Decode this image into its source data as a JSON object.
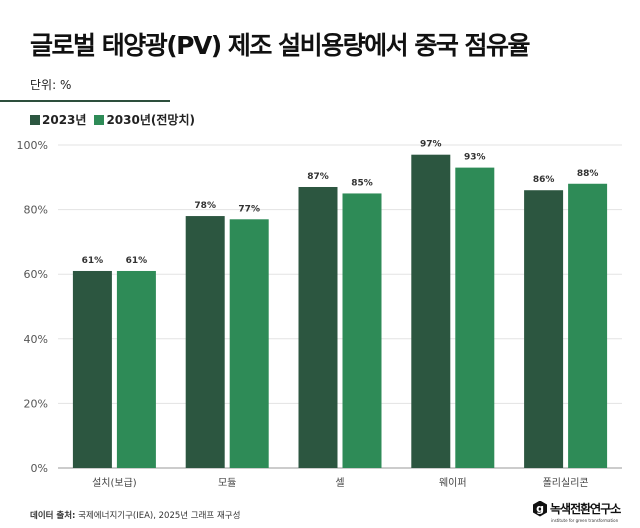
{
  "title": "글로벌 태양광(PV) 제조 설비용량에서 중국 점유율",
  "unit": "단위: %",
  "source_label": "데이터 출처:",
  "source_text": "국제에너지기구(IEA), 2025년 그래프 재구성",
  "logo": {
    "name": "녹색전환연구소",
    "sub": "institute for green transformation",
    "letter": "g"
  },
  "colors": {
    "s2023": "#2c5640",
    "s2030": "#2e8b57"
  },
  "chart_data": {
    "type": "bar",
    "title": "글로벌 태양광(PV) 제조 설비용량에서 중국 점유율",
    "categories": [
      "설치(보급)",
      "모듈",
      "셀",
      "웨이퍼",
      "폴리실리콘"
    ],
    "series": [
      {
        "name": "2023년",
        "values": [
          61,
          78,
          87,
          97,
          86
        ]
      },
      {
        "name": "2030년(전망치)",
        "values": [
          61,
          77,
          85,
          93,
          88
        ]
      }
    ],
    "ylim": [
      0,
      100
    ],
    "yticks": [
      "0%",
      "20%",
      "40%",
      "60%",
      "80%",
      "100%"
    ],
    "ytick_values": [
      0,
      20,
      40,
      60,
      80,
      100
    ],
    "value_suffix": "%",
    "grid": true,
    "legend": "top-left"
  }
}
